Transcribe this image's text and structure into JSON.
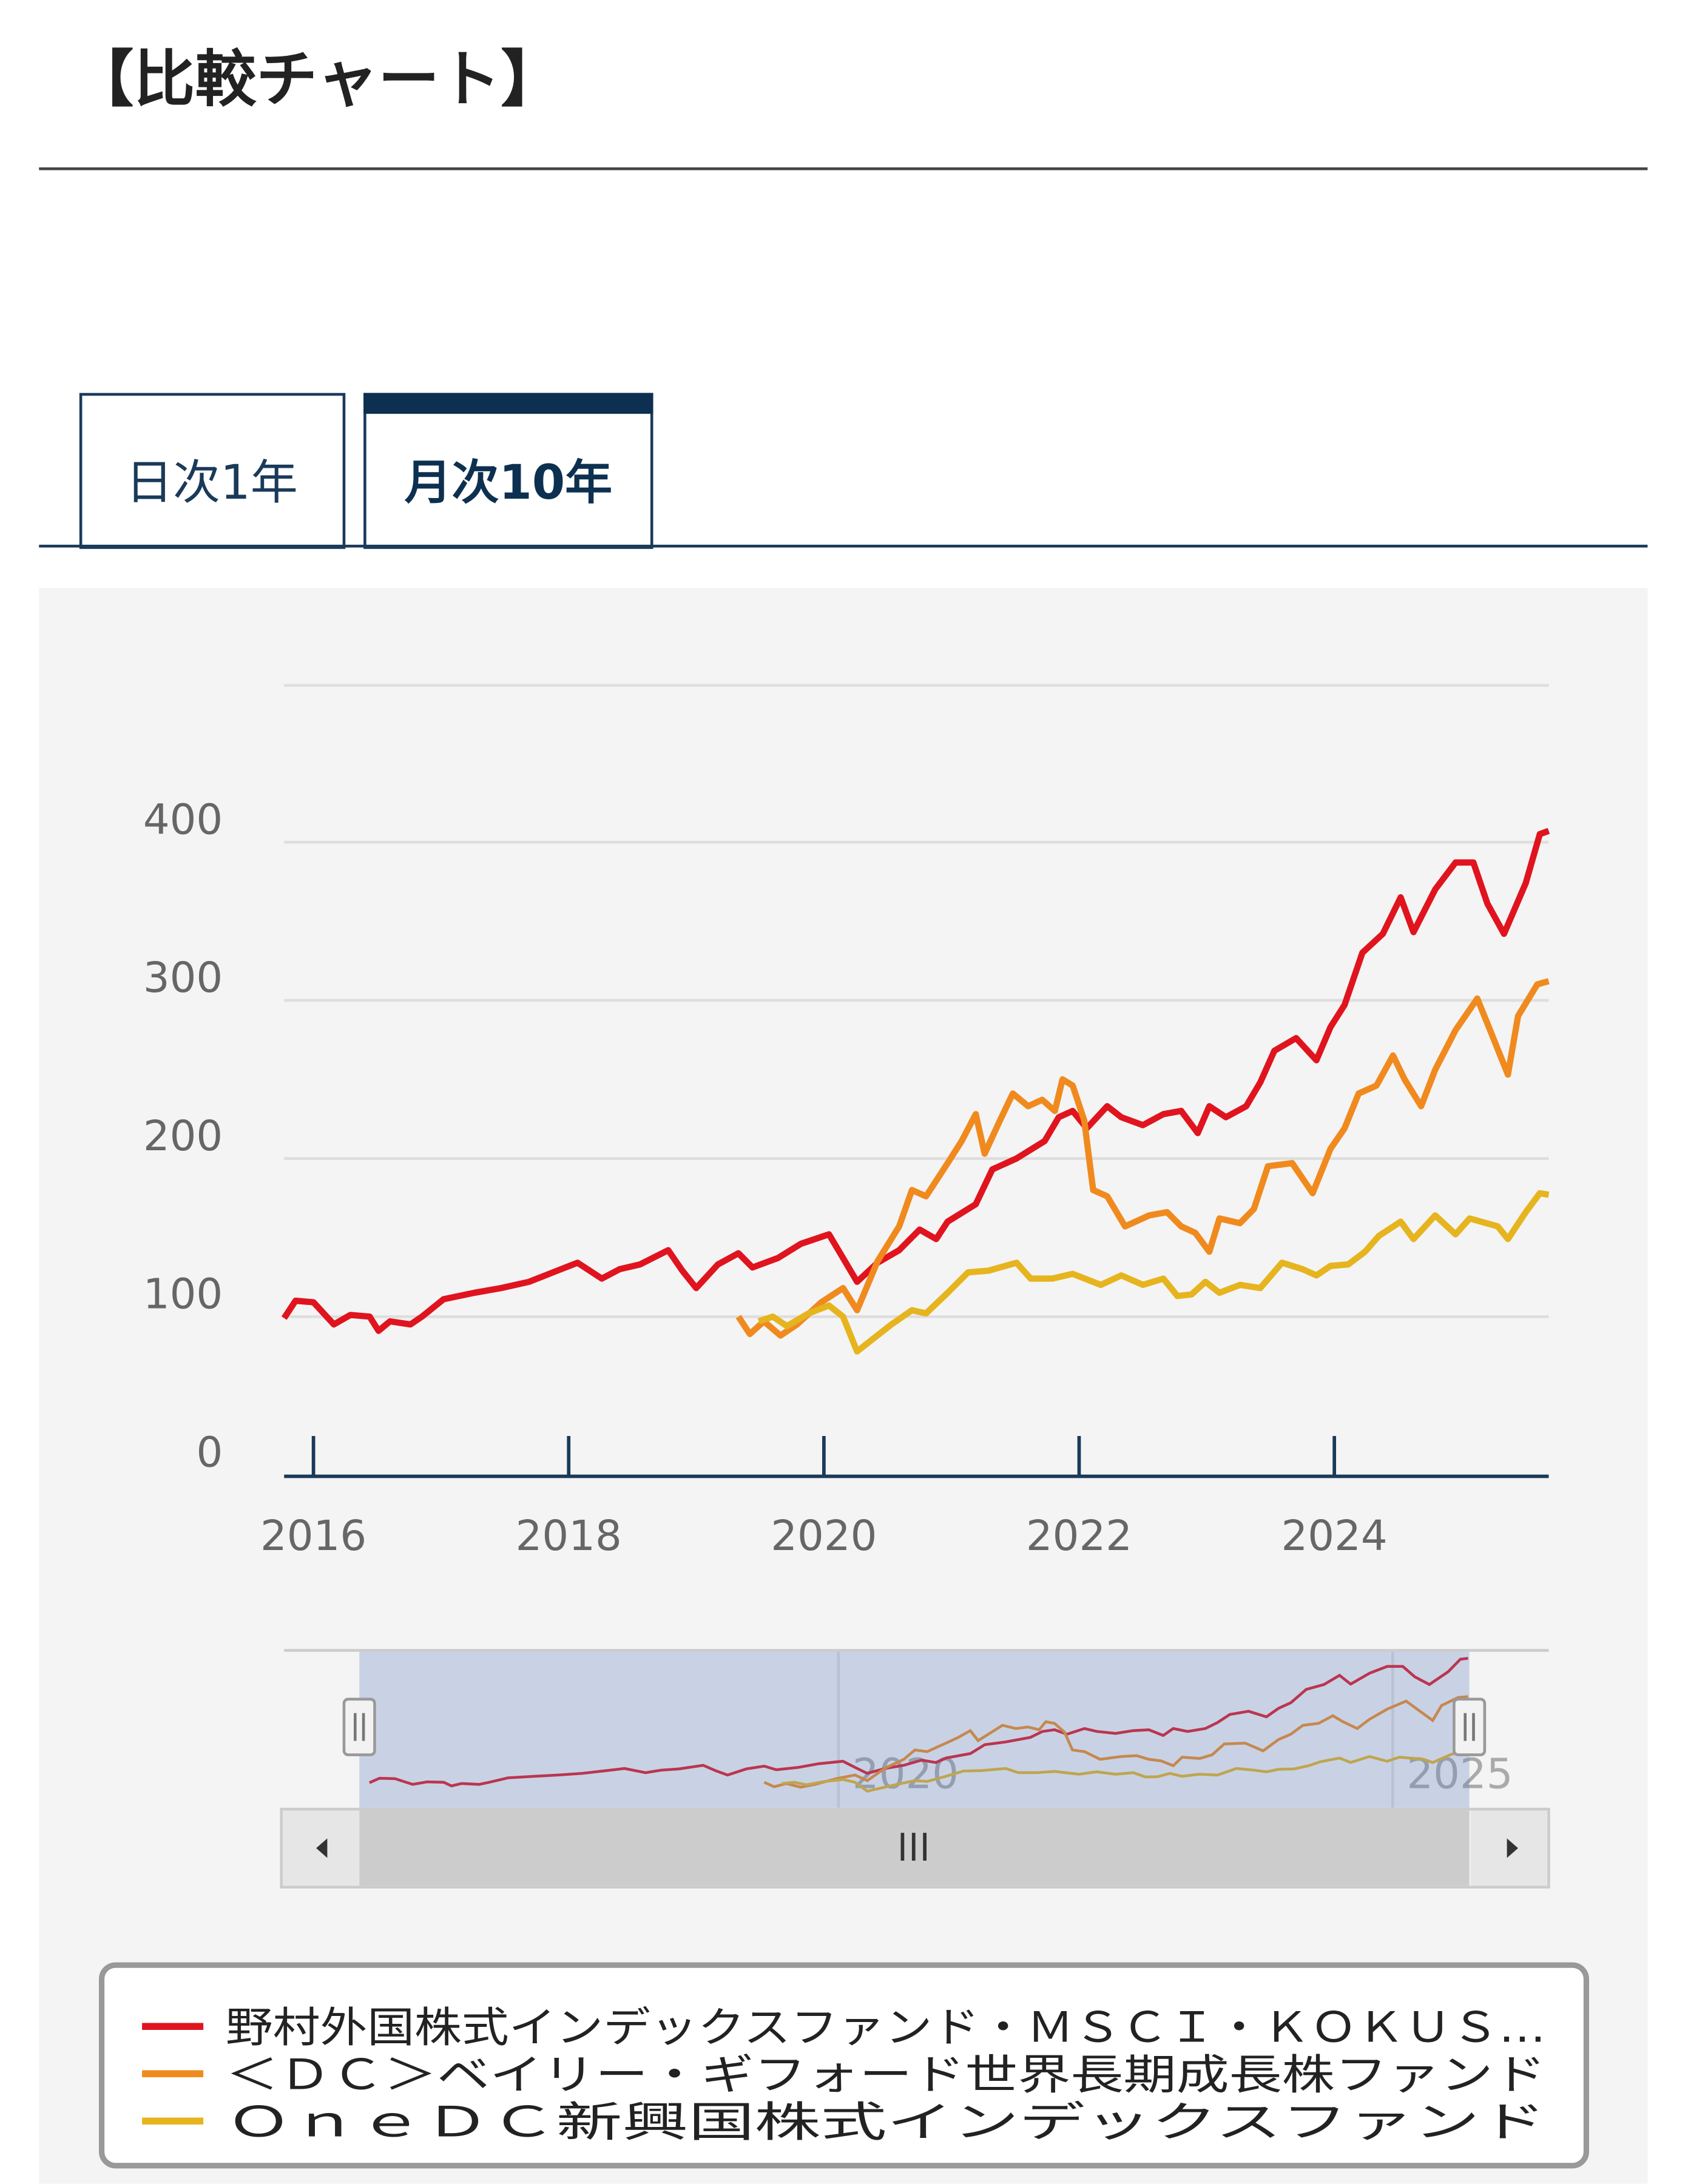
{
  "header": {
    "title": "【比較チャート】"
  },
  "tabs": [
    "日次1年",
    "月次10年"
  ],
  "chart_data": {
    "type": "line",
    "xlim": [
      2015.77,
      2025.68
    ],
    "xticks": [
      2016,
      2018,
      2020,
      2022,
      2024
    ],
    "ylim": [
      0,
      500
    ],
    "yticks": [
      0,
      100,
      200,
      300,
      400
    ],
    "grid": true,
    "navigator": {
      "xticks": [
        2020,
        2025
      ]
    },
    "series": [
      {
        "name": "野村外国株式インデックスファンド・ＭＳＣＩ・ＫＯＫＵＳ…",
        "color": "#e0141e",
        "x": [
          2015.77,
          2015.86,
          2016.0,
          2016.16,
          2016.29,
          2016.44,
          2016.51,
          2016.6,
          2016.76,
          2016.85,
          2017.02,
          2017.26,
          2017.47,
          2017.69,
          2017.91,
          2018.07,
          2018.26,
          2018.4,
          2018.56,
          2018.78,
          2018.89,
          2019.0,
          2019.17,
          2019.33,
          2019.44,
          2019.64,
          2019.82,
          2020.04,
          2020.15,
          2020.26,
          2020.42,
          2020.59,
          2020.75,
          2020.88,
          2020.97,
          2021.19,
          2021.32,
          2021.51,
          2021.73,
          2021.84,
          2021.95,
          2022.06,
          2022.22,
          2022.33,
          2022.5,
          2022.66,
          2022.8,
          2022.93,
          2023.02,
          2023.15,
          2023.31,
          2023.42,
          2023.53,
          2023.7,
          2023.86,
          2023.97,
          2024.08,
          2024.22,
          2024.38,
          2024.52,
          2024.62,
          2024.79,
          2024.95,
          2025.09,
          2025.2,
          2025.33,
          2025.5,
          2025.61,
          2025.68
        ],
        "values": [
          100,
          111,
          110,
          96,
          102,
          101,
          92,
          98,
          96,
          101,
          112,
          116,
          119,
          123,
          130,
          135,
          125,
          131,
          134,
          143,
          130,
          119,
          134,
          141,
          132,
          138,
          147,
          153,
          138,
          123,
          135,
          143,
          156,
          150,
          161,
          172,
          194,
          201,
          212,
          227,
          231,
          220,
          234,
          227,
          222,
          229,
          231,
          217,
          234,
          227,
          234,
          249,
          269,
          277,
          263,
          284,
          298,
          331,
          343,
          366,
          344,
          371,
          388,
          388,
          362,
          343,
          375,
          406,
          408
        ]
      },
      {
        "name": "＜ＤＣ＞ベイリー・ギフォード世界長期成長株ファンド",
        "color": "#f08a1e",
        "x": [
          2019.33,
          2019.42,
          2019.53,
          2019.66,
          2019.79,
          2019.98,
          2020.15,
          2020.26,
          2020.42,
          2020.59,
          2020.69,
          2020.8,
          2020.97,
          2021.08,
          2021.19,
          2021.26,
          2021.38,
          2021.48,
          2021.6,
          2021.71,
          2021.81,
          2021.87,
          2021.95,
          2022.04,
          2022.11,
          2022.22,
          2022.36,
          2022.55,
          2022.69,
          2022.8,
          2022.91,
          2023.02,
          2023.1,
          2023.26,
          2023.37,
          2023.48,
          2023.67,
          2023.83,
          2023.97,
          2024.08,
          2024.19,
          2024.33,
          2024.46,
          2024.55,
          2024.68,
          2024.79,
          2024.95,
          2025.12,
          2025.22,
          2025.36,
          2025.44,
          2025.59,
          2025.68
        ],
        "values": [
          101,
          90,
          98,
          89,
          96,
          110,
          119,
          105,
          136,
          158,
          181,
          177,
          198,
          212,
          229,
          204,
          225,
          242,
          234,
          238,
          231,
          251,
          247,
          225,
          181,
          177,
          158,
          165,
          167,
          158,
          154,
          142,
          163,
          160,
          169,
          196,
          198,
          179,
          207,
          220,
          242,
          247,
          266,
          251,
          234,
          257,
          282,
          302,
          282,
          254,
          291,
          311,
          313
        ]
      },
      {
        "name": "ＯｎｅＤＣ新興国株式インデックスファンド",
        "color": "#e6b41e",
        "x": [
          2019.49,
          2019.6,
          2019.71,
          2019.88,
          2020.04,
          2020.15,
          2020.26,
          2020.37,
          2020.53,
          2020.69,
          2020.8,
          2020.97,
          2021.13,
          2021.29,
          2021.51,
          2021.62,
          2021.79,
          2021.95,
          2022.17,
          2022.33,
          2022.5,
          2022.66,
          2022.77,
          2022.88,
          2022.99,
          2023.1,
          2023.26,
          2023.42,
          2023.59,
          2023.75,
          2023.86,
          2023.97,
          2024.11,
          2024.24,
          2024.35,
          2024.52,
          2024.62,
          2024.79,
          2024.95,
          2025.06,
          2025.28,
          2025.36,
          2025.5,
          2025.61,
          2025.68
        ],
        "values": [
          98,
          101,
          95,
          103,
          108,
          101,
          79,
          86,
          96,
          105,
          103,
          116,
          129,
          130,
          135,
          125,
          125,
          128,
          121,
          127,
          121,
          125,
          114,
          115,
          123,
          116,
          121,
          119,
          135,
          131,
          127,
          133,
          134,
          142,
          152,
          161,
          150,
          165,
          153,
          163,
          158,
          150,
          167,
          179,
          178
        ]
      }
    ]
  }
}
